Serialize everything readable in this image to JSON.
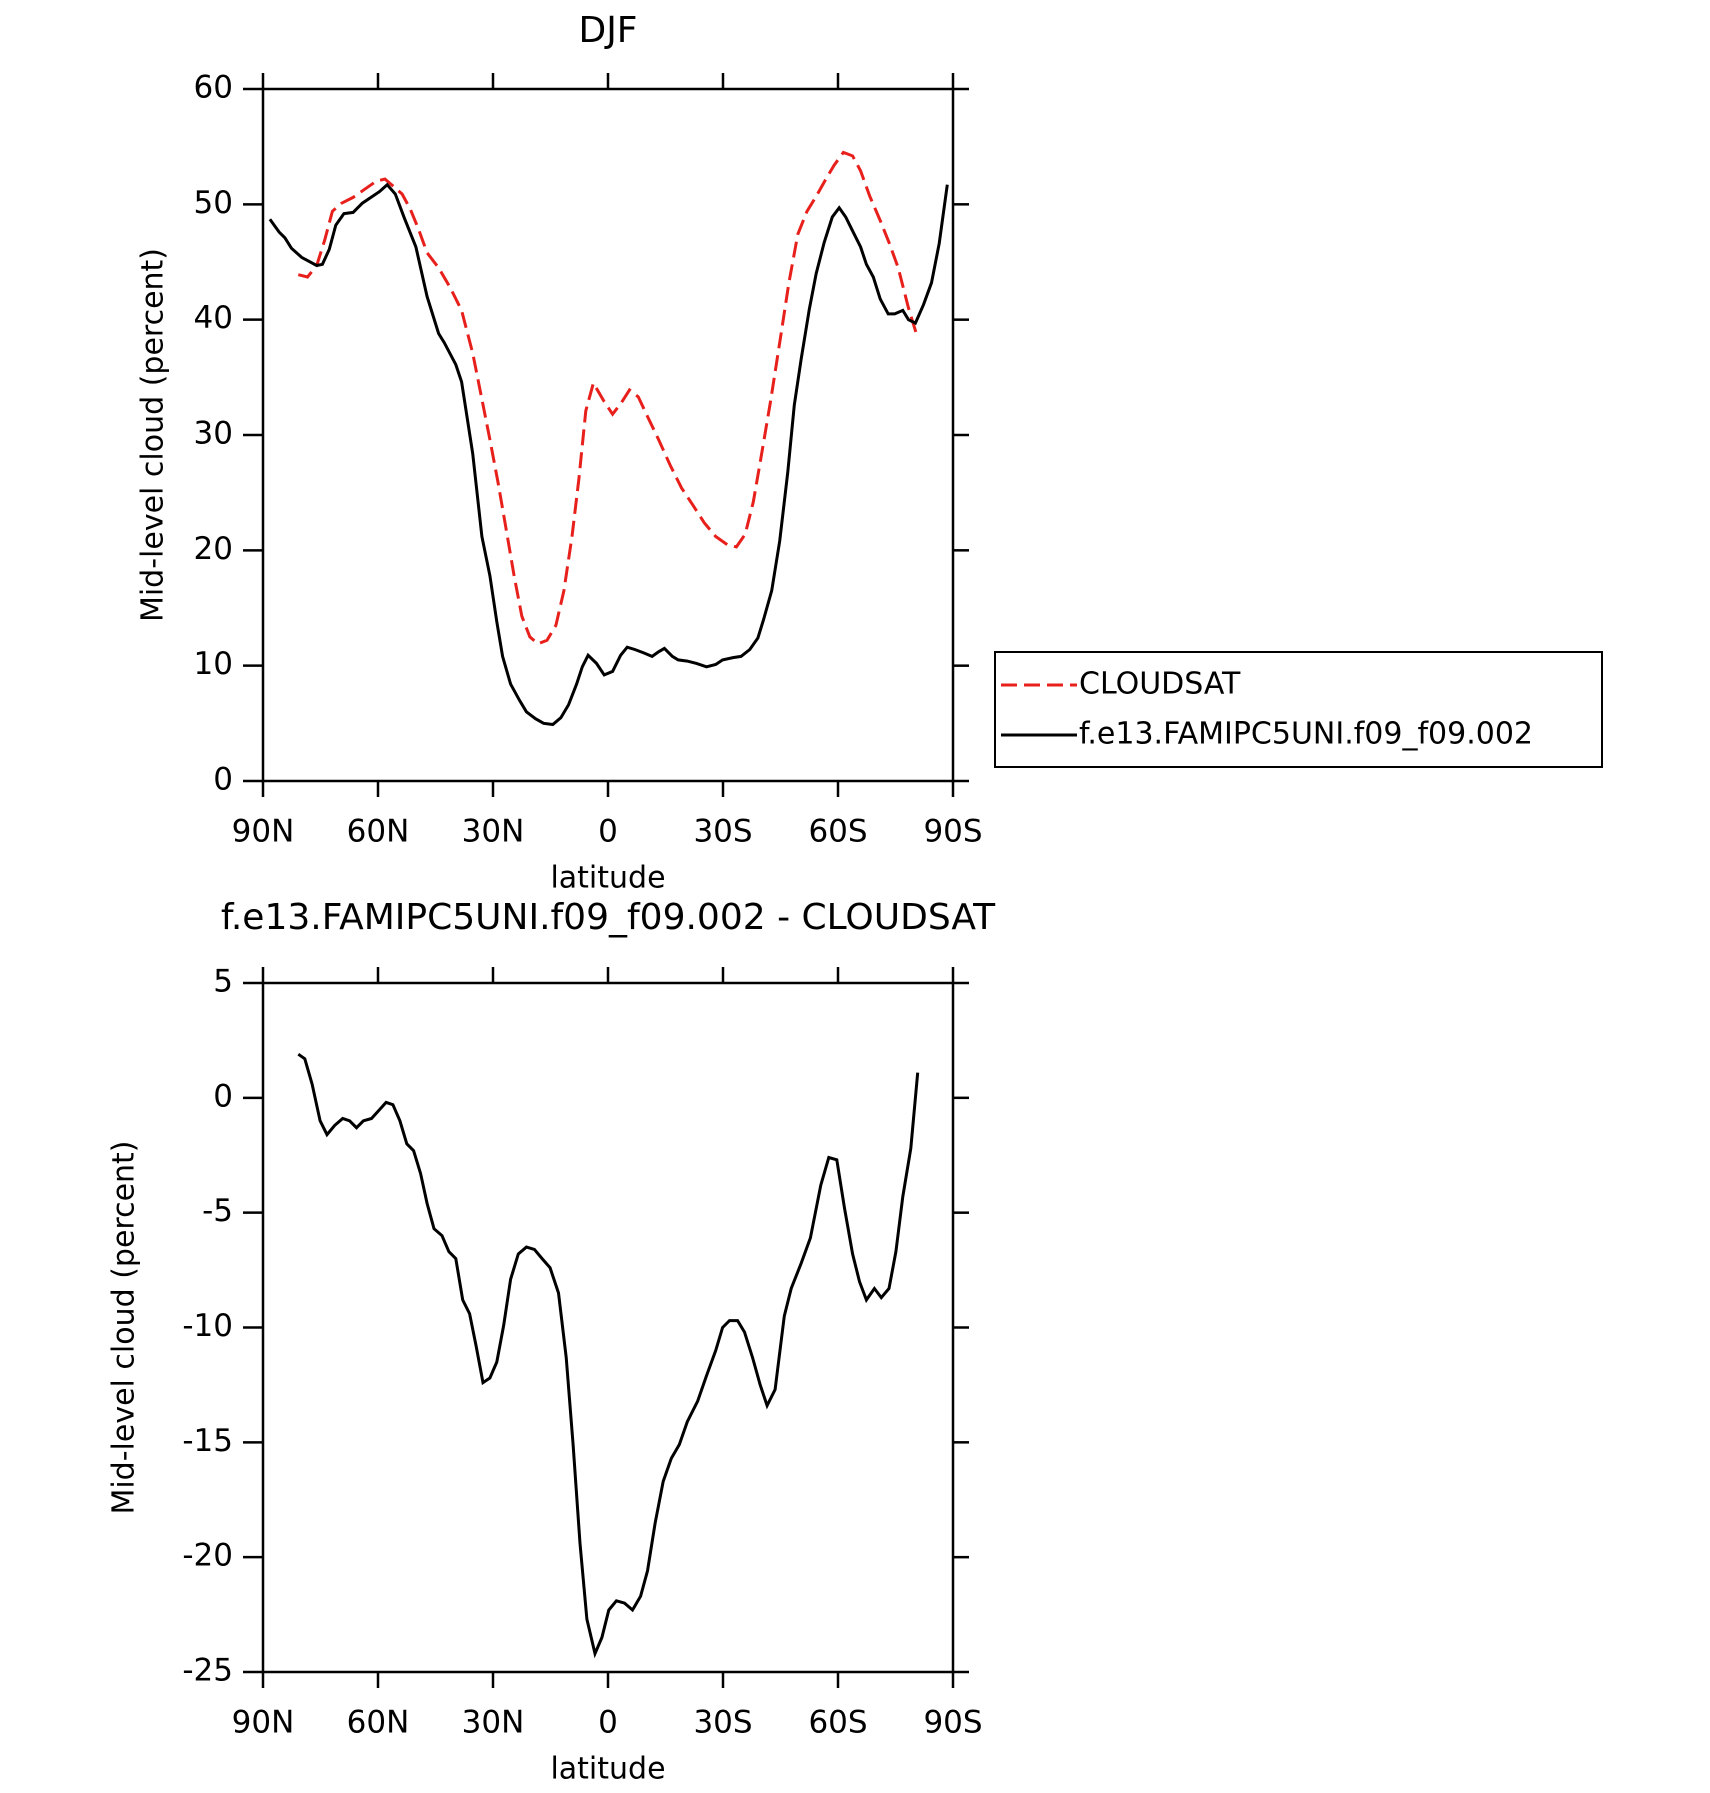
{
  "chart_data": [
    {
      "type": "line",
      "title": "DJF",
      "xlabel": "latitude",
      "ylabel": "Mid-level cloud (percent)",
      "xlim": [
        90,
        -90
      ],
      "xticks": [
        {
          "value": 90,
          "label": "90N"
        },
        {
          "value": 60,
          "label": "60N"
        },
        {
          "value": 30,
          "label": "30N"
        },
        0,
        {
          "value": -30,
          "label": "30S"
        },
        {
          "value": -60,
          "label": "60S"
        },
        {
          "value": -90,
          "label": "90S"
        }
      ],
      "ylim": [
        0,
        60
      ],
      "yticks": [
        0,
        10,
        20,
        30,
        40,
        50,
        60
      ],
      "legend": "right",
      "series": [
        {
          "name": "CLOUDSAT",
          "color": "#e8201c",
          "dash": true,
          "x": [
            80.8,
            78.4,
            76,
            73.9,
            71.9,
            69.5,
            66.5,
            63.5,
            60.5,
            58.2,
            56.1,
            53.7,
            51.6,
            49.5,
            47.2,
            44.2,
            41.2,
            38.2,
            35.3,
            32.9,
            30.8,
            28.7,
            26.6,
            24.5,
            22.5,
            20.4,
            18.3,
            15.9,
            13.6,
            11.5,
            9.4,
            7.6,
            5.8,
            3.8,
            1,
            -1.2,
            -3.5,
            -5.6,
            -7.9,
            -10.3,
            -13.2,
            -16.2,
            -19.2,
            -22.2,
            -25.1,
            -28.1,
            -31.1,
            -33.5,
            -35.8,
            -37.9,
            -40,
            -42.4,
            -44.8,
            -47.2,
            -49.5,
            -51.9,
            -54.3,
            -56.7,
            -59,
            -61.4,
            -63.8,
            -65.9,
            -68.3,
            -71,
            -73.3,
            -75.7,
            -78.4,
            -80.8
          ],
          "values": [
            43.9,
            43.7,
            44.7,
            46.9,
            49.4,
            50.1,
            50.6,
            51.3,
            52.0,
            52.2,
            51.6,
            50.9,
            49.6,
            47.9,
            45.8,
            44.5,
            42.8,
            40.8,
            37.1,
            33.1,
            29.6,
            25.9,
            21.9,
            17.8,
            14.3,
            12.5,
            11.9,
            12.2,
            13.5,
            16.5,
            21.2,
            26.2,
            32.1,
            34.5,
            32.9,
            31.8,
            32.8,
            33.9,
            33.3,
            31.6,
            29.6,
            27.4,
            25.4,
            23.9,
            22.4,
            21.2,
            20.5,
            20.3,
            21.4,
            24.2,
            28.2,
            32.9,
            38.0,
            43.2,
            47.4,
            49.4,
            50.7,
            52.1,
            53.4,
            54.5,
            54.2,
            52.9,
            50.7,
            48.6,
            46.7,
            44.5,
            41.0,
            38.4
          ]
        },
        {
          "name": "f.e13.FAMIPC5UNI.f09_f09.002",
          "color": "#000000",
          "dash": false,
          "x": [
            88.2,
            85.8,
            84.3,
            82.6,
            79.9,
            76,
            74.5,
            72.7,
            71,
            68.9,
            66.5,
            64.1,
            61.4,
            59.6,
            57.6,
            55.5,
            53.1,
            50.1,
            47.2,
            44.2,
            42.7,
            39.7,
            38.2,
            35.3,
            32.9,
            30.8,
            29,
            27.5,
            25.4,
            23.1,
            21.3,
            18.9,
            16.8,
            14.4,
            12.3,
            10.3,
            8.2,
            6.7,
            5.2,
            3,
            1,
            -1.2,
            -3.3,
            -5,
            -7,
            -9.4,
            -11.5,
            -13.2,
            -14.7,
            -16.8,
            -18.3,
            -20.7,
            -23.1,
            -25.7,
            -28.1,
            -29.9,
            -32.6,
            -34.7,
            -37,
            -39.1,
            -40.6,
            -42.7,
            -44.8,
            -46.9,
            -48.6,
            -50.4,
            -52.5,
            -54.3,
            -56.4,
            -58.5,
            -60.3,
            -62,
            -63.8,
            -65.9,
            -67.4,
            -69.2,
            -71,
            -73.1,
            -74.8,
            -76.9,
            -78.4,
            -80.2,
            -82.3,
            -84.4,
            -86.4,
            -88.5
          ],
          "values": [
            48.7,
            47.6,
            47.1,
            46.2,
            45.4,
            44.7,
            44.8,
            46.1,
            48.2,
            49.2,
            49.3,
            50.1,
            50.7,
            51.1,
            51.7,
            50.9,
            48.8,
            46.3,
            42.0,
            38.8,
            38.0,
            36.1,
            34.6,
            28.4,
            21.2,
            17.8,
            13.8,
            10.8,
            8.4,
            7.0,
            6.0,
            5.4,
            5.0,
            4.9,
            5.5,
            6.6,
            8.4,
            9.9,
            10.9,
            10.2,
            9.2,
            9.5,
            10.9,
            11.6,
            11.4,
            11.1,
            10.8,
            11.2,
            11.5,
            10.8,
            10.5,
            10.4,
            10.2,
            9.9,
            10.1,
            10.5,
            10.7,
            10.8,
            11.4,
            12.4,
            14.0,
            16.5,
            20.8,
            26.8,
            32.6,
            36.6,
            40.9,
            44.0,
            46.7,
            48.9,
            49.7,
            48.9,
            47.7,
            46.3,
            44.8,
            43.7,
            41.8,
            40.5,
            40.5,
            40.8,
            40.0,
            39.7,
            41.3,
            43.2,
            46.6,
            51.7
          ]
        }
      ]
    },
    {
      "type": "line",
      "title": "f.e13.FAMIPC5UNI.f09_f09.002 - CLOUDSAT",
      "xlabel": "latitude",
      "ylabel": "Mid-level cloud (percent)",
      "xlim": [
        90,
        -90
      ],
      "xticks": [
        {
          "value": 90,
          "label": "90N"
        },
        {
          "value": 60,
          "label": "60N"
        },
        {
          "value": 30,
          "label": "30N"
        },
        0,
        {
          "value": -30,
          "label": "30S"
        },
        {
          "value": -60,
          "label": "60S"
        },
        {
          "value": -90,
          "label": "90S"
        }
      ],
      "ylim": [
        -25,
        5
      ],
      "yticks": [
        -25,
        -20,
        -15,
        -10,
        -5,
        0,
        5
      ],
      "series": [
        {
          "color": "#000000",
          "dash": false,
          "x": [
            80.8,
            79.1,
            77.2,
            75.1,
            73.3,
            71.3,
            69.2,
            67.4,
            65.6,
            63.8,
            61.7,
            57.9,
            56.1,
            54.3,
            52.5,
            50.7,
            48.9,
            47.2,
            45.4,
            43.3,
            41.5,
            39.7,
            37.9,
            36.1,
            34.4,
            32.6,
            30.8,
            29,
            27.2,
            25.4,
            23.4,
            21.3,
            19.2,
            17.2,
            15.1,
            12.9,
            10.9,
            9.1,
            7.3,
            5.5,
            3.4,
            1.6,
            -0.2,
            -2.2,
            -4.3,
            -6.4,
            -8.5,
            -10.3,
            -12.3,
            -14.4,
            -16.5,
            -18.6,
            -20.7,
            -23.4,
            -25.7,
            -28.1,
            -29.9,
            -31.7,
            -33.8,
            -35.6,
            -37.7,
            -39.7,
            -41.5,
            -43.6,
            -46,
            -47.8,
            -50.4,
            -52.8,
            -55.5,
            -57.6,
            -59.7,
            -61.7,
            -63.8,
            -65.6,
            -67.4,
            -69.5,
            -71.3,
            -73.3,
            -75.1,
            -76.9,
            -79,
            -80.8
          ],
          "values": [
            1.9,
            1.7,
            0.6,
            -1.0,
            -1.6,
            -1.2,
            -0.9,
            -1.0,
            -1.3,
            -1.0,
            -0.9,
            -0.2,
            -0.3,
            -1.0,
            -2.0,
            -2.3,
            -3.3,
            -4.6,
            -5.7,
            -6.0,
            -6.7,
            -7.0,
            -8.8,
            -9.4,
            -10.8,
            -12.4,
            -12.2,
            -11.5,
            -9.9,
            -7.9,
            -6.8,
            -6.5,
            -6.6,
            -7.0,
            -7.4,
            -8.5,
            -11.3,
            -15.1,
            -19.4,
            -22.7,
            -24.2,
            -23.5,
            -22.3,
            -21.9,
            -22.0,
            -22.3,
            -21.7,
            -20.6,
            -18.5,
            -16.7,
            -15.7,
            -15.1,
            -14.1,
            -13.2,
            -12.1,
            -11.0,
            -10.0,
            -9.7,
            -9.7,
            -10.2,
            -11.3,
            -12.5,
            -13.4,
            -12.7,
            -9.5,
            -8.3,
            -7.2,
            -6.1,
            -3.8,
            -2.6,
            -2.7,
            -4.8,
            -6.8,
            -8.0,
            -8.8,
            -8.3,
            -8.7,
            -8.3,
            -6.7,
            -4.3,
            -2.2,
            1.1
          ]
        }
      ]
    }
  ]
}
